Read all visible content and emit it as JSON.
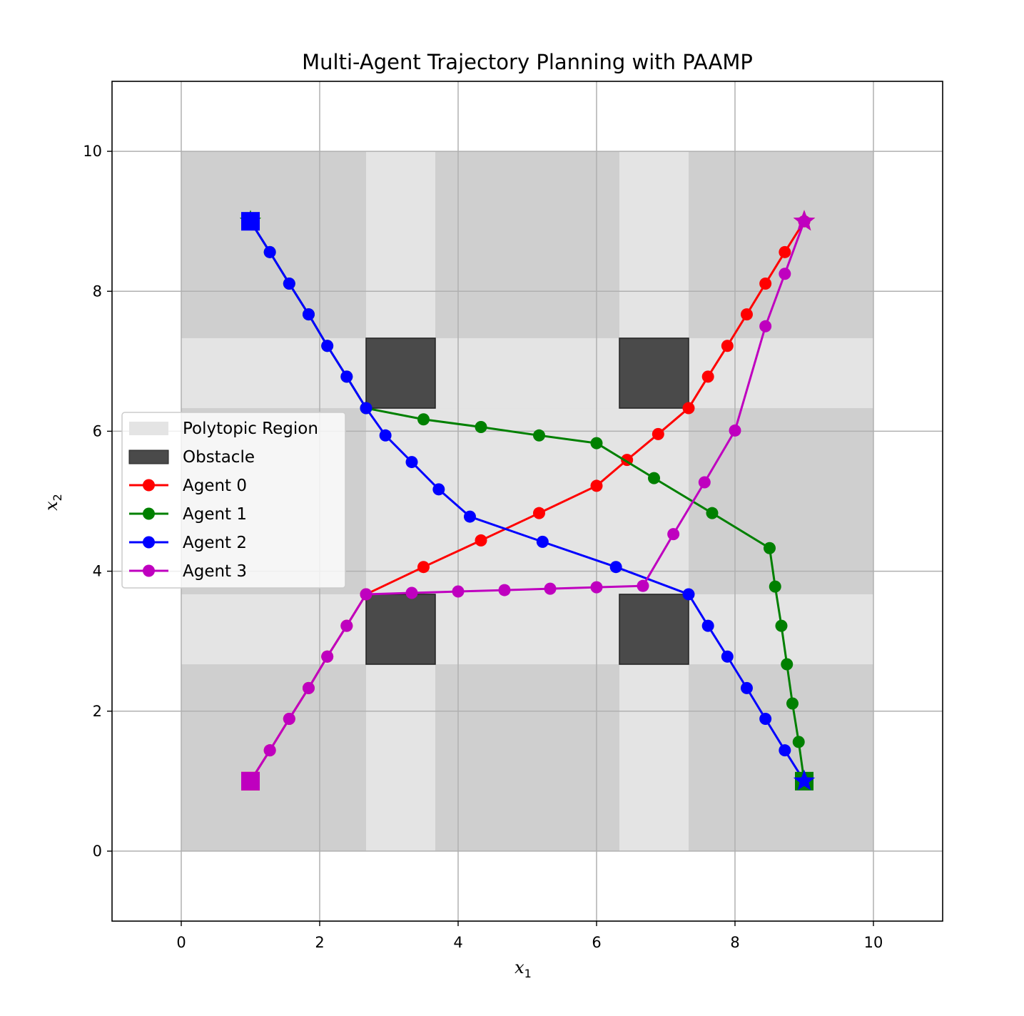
{
  "chart_data": {
    "type": "line",
    "title": "Multi-Agent Trajectory Planning with PAAMP",
    "xlabel": "x",
    "xlabel_sub": "1",
    "ylabel": "x",
    "ylabel_sub": "2",
    "xlim": [
      -1,
      11
    ],
    "ylim": [
      -1,
      11
    ],
    "xticks": [
      0,
      2,
      4,
      6,
      8,
      10
    ],
    "yticks": [
      0,
      2,
      4,
      6,
      8,
      10
    ],
    "grid": true,
    "legend_position": "center-left",
    "colors": {
      "region_outer": "#cfcfcf",
      "region_inner": "#e4e4e4",
      "obstacle": "#4a4a4a",
      "grid": "#b0b0b0"
    },
    "regions": [
      {
        "x0": 0,
        "x1": 10,
        "y0": 0,
        "y1": 10,
        "shade": "outer"
      },
      {
        "x0": 2.67,
        "x1": 3.67,
        "y0": 0,
        "y1": 10,
        "shade": "inner"
      },
      {
        "x0": 6.33,
        "x1": 7.33,
        "y0": 0,
        "y1": 10,
        "shade": "inner"
      },
      {
        "x0": 0,
        "x1": 10,
        "y0": 2.67,
        "y1": 3.67,
        "shade": "inner"
      },
      {
        "x0": 0,
        "x1": 10,
        "y0": 6.33,
        "y1": 7.33,
        "shade": "inner"
      },
      {
        "x0": 3.67,
        "x1": 6.33,
        "y0": 3.67,
        "y1": 6.33,
        "shade": "inner"
      }
    ],
    "obstacles": [
      {
        "x0": 2.67,
        "x1": 3.67,
        "y0": 6.33,
        "y1": 7.33
      },
      {
        "x0": 6.33,
        "x1": 7.33,
        "y0": 6.33,
        "y1": 7.33
      },
      {
        "x0": 2.67,
        "x1": 3.67,
        "y0": 2.67,
        "y1": 3.67
      },
      {
        "x0": 6.33,
        "x1": 7.33,
        "y0": 2.67,
        "y1": 3.67
      }
    ],
    "legend": [
      {
        "label": "Polytopic Region",
        "kind": "patch",
        "color": "#e4e4e4"
      },
      {
        "label": "Obstacle",
        "kind": "patch",
        "color": "#4a4a4a"
      },
      {
        "label": "Agent 0",
        "kind": "line",
        "color": "#ff0000"
      },
      {
        "label": "Agent 1",
        "kind": "line",
        "color": "#008000"
      },
      {
        "label": "Agent 2",
        "kind": "line",
        "color": "#0000ff"
      },
      {
        "label": "Agent 3",
        "kind": "line",
        "color": "#bf00bf"
      }
    ],
    "series": [
      {
        "name": "Agent 0",
        "color": "#ff0000",
        "start": [
          1,
          1
        ],
        "goal": [
          9,
          9
        ],
        "x": [
          1.0,
          1.28,
          1.56,
          1.84,
          2.11,
          2.39,
          2.67,
          3.5,
          4.33,
          5.17,
          6.0,
          6.44,
          6.89,
          7.33,
          7.61,
          7.89,
          8.17,
          8.44,
          8.72,
          9.0
        ],
        "y": [
          1.0,
          1.44,
          1.89,
          2.33,
          2.78,
          3.22,
          3.67,
          4.06,
          4.44,
          4.83,
          5.22,
          5.59,
          5.96,
          6.33,
          6.78,
          7.22,
          7.67,
          8.11,
          8.56,
          9.0
        ]
      },
      {
        "name": "Agent 1",
        "color": "#008000",
        "start": [
          9,
          1
        ],
        "goal": [
          1,
          9
        ],
        "x": [
          9.0,
          8.92,
          8.83,
          8.75,
          8.67,
          8.58,
          8.5,
          7.67,
          6.83,
          6.0,
          5.17,
          4.33,
          3.5,
          2.67,
          2.39,
          2.11,
          1.84,
          1.56,
          1.28,
          1.0
        ],
        "y": [
          1.0,
          1.56,
          2.11,
          2.67,
          3.22,
          3.78,
          4.33,
          4.83,
          5.33,
          5.83,
          5.94,
          6.06,
          6.17,
          6.33,
          6.78,
          7.22,
          7.67,
          8.11,
          8.56,
          9.0
        ]
      },
      {
        "name": "Agent 2",
        "color": "#0000ff",
        "start": [
          1,
          9
        ],
        "goal": [
          9,
          1
        ],
        "x": [
          1.0,
          1.28,
          1.56,
          1.84,
          2.11,
          2.39,
          2.67,
          2.95,
          3.33,
          3.72,
          4.17,
          5.22,
          6.28,
          7.33,
          7.61,
          7.89,
          8.17,
          8.44,
          8.72,
          9.0
        ],
        "y": [
          9.0,
          8.56,
          8.11,
          7.67,
          7.22,
          6.78,
          6.33,
          5.94,
          5.56,
          5.17,
          4.78,
          4.42,
          4.06,
          3.67,
          3.22,
          2.78,
          2.33,
          1.89,
          1.44,
          1.0
        ]
      },
      {
        "name": "Agent 3",
        "color": "#bf00bf",
        "start": [
          1,
          1
        ],
        "goal": [
          9,
          9
        ],
        "x": [
          1.0,
          1.28,
          1.56,
          1.84,
          2.11,
          2.39,
          2.67,
          3.33,
          4.0,
          4.67,
          5.33,
          6.0,
          6.67,
          7.11,
          7.56,
          8.0,
          8.44,
          8.72,
          9.0
        ],
        "y": [
          1.0,
          1.44,
          1.89,
          2.33,
          2.78,
          3.22,
          3.67,
          3.69,
          3.71,
          3.73,
          3.75,
          3.77,
          3.79,
          4.53,
          5.27,
          6.01,
          7.5,
          8.25,
          9.0
        ]
      }
    ]
  }
}
